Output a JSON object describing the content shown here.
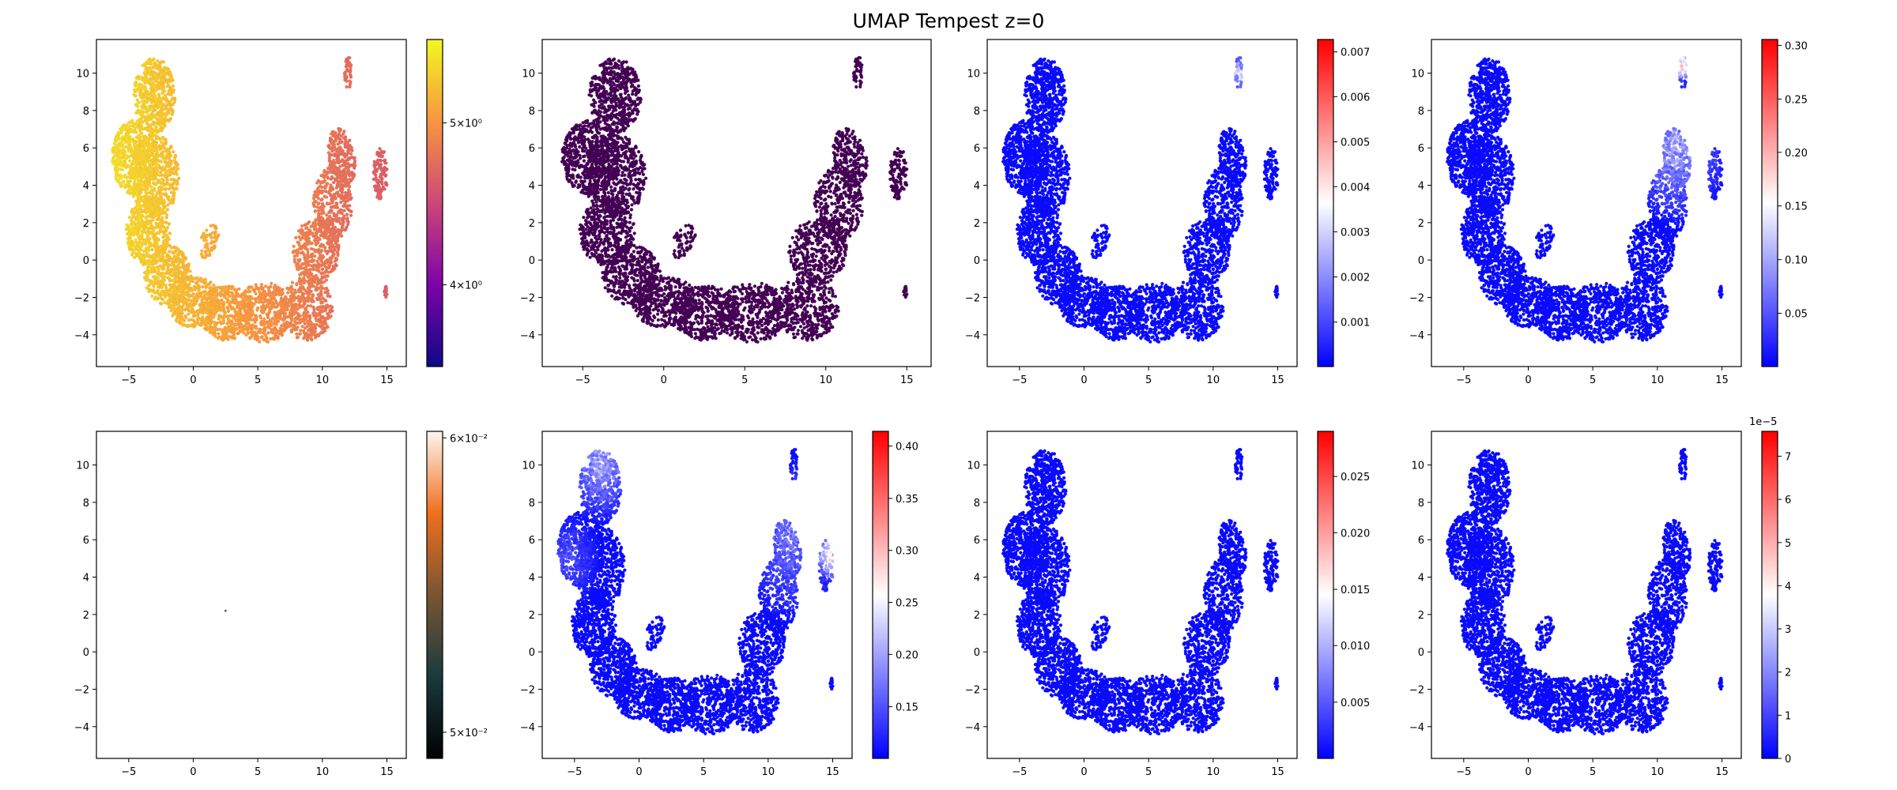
{
  "figure": {
    "title": "UMAP Tempest z=0"
  },
  "chart_data": [
    {
      "type": "scatter",
      "panel": "row1-col1",
      "x_ticks": [
        "−5",
        "0",
        "5",
        "10",
        "15"
      ],
      "y_ticks": [
        "−4",
        "−2",
        "0",
        "2",
        "4",
        "6",
        "8",
        "10"
      ],
      "xlim": [
        -7.5,
        16.5
      ],
      "ylim": [
        -5.7,
        11.8
      ],
      "colormap": "plasma",
      "color_scale": "log",
      "coloring": "gradient-x",
      "c_from": 0.95,
      "c_to": 0.55,
      "colorbar_ticks": [
        {
          "label": "5×10⁰",
          "frac": 0.745
        },
        {
          "label": "4×10⁰",
          "frac": 0.25
        }
      ],
      "colorbar_offset": ""
    },
    {
      "type": "scatter",
      "panel": "row1-col2",
      "x_ticks": [
        "−5",
        "0",
        "5",
        "10",
        "15"
      ],
      "y_ticks": [
        "−4",
        "−2",
        "0",
        "2",
        "4",
        "6",
        "8",
        "10"
      ],
      "xlim": [
        -7.5,
        16.5
      ],
      "ylim": [
        -5.7,
        11.8
      ],
      "colormap": "none",
      "single_color": "#440154",
      "coloring": "solid"
    },
    {
      "type": "scatter",
      "panel": "row1-col3",
      "x_ticks": [
        "−5",
        "0",
        "5",
        "10",
        "15"
      ],
      "y_ticks": [
        "−4",
        "−2",
        "0",
        "2",
        "4",
        "6",
        "8",
        "10"
      ],
      "xlim": [
        -7.5,
        16.5
      ],
      "ylim": [
        -5.7,
        11.8
      ],
      "colormap": "bwr",
      "coloring": "mostly-low",
      "hot": [
        {
          "x": 12.0,
          "y": 10.0,
          "r": 1.4,
          "strength": 0.45
        }
      ],
      "colorbar_ticks": [
        {
          "label": "0.001",
          "frac": 0.136
        },
        {
          "label": "0.002",
          "frac": 0.274
        },
        {
          "label": "0.003",
          "frac": 0.412
        },
        {
          "label": "0.004",
          "frac": 0.55
        },
        {
          "label": "0.005",
          "frac": 0.687
        },
        {
          "label": "0.006",
          "frac": 0.825
        },
        {
          "label": "0.007",
          "frac": 0.962
        }
      ],
      "colorbar_offset": ""
    },
    {
      "type": "scatter",
      "panel": "row1-col4",
      "x_ticks": [
        "−5",
        "0",
        "5",
        "10",
        "15"
      ],
      "y_ticks": [
        "−4",
        "−2",
        "0",
        "2",
        "4",
        "6",
        "8",
        "10"
      ],
      "xlim": [
        -7.5,
        16.5
      ],
      "ylim": [
        -5.7,
        11.8
      ],
      "colormap": "bwr",
      "coloring": "mostly-low",
      "hot": [
        {
          "x": 12.0,
          "y": 10.4,
          "r": 1.0,
          "strength": 0.7
        },
        {
          "x": 11.5,
          "y": 6.0,
          "r": 4.5,
          "strength": 0.35
        }
      ],
      "colorbar_ticks": [
        {
          "label": "0.05",
          "frac": 0.163
        },
        {
          "label": "0.10",
          "frac": 0.327
        },
        {
          "label": "0.15",
          "frac": 0.491
        },
        {
          "label": "0.20",
          "frac": 0.655
        },
        {
          "label": "0.25",
          "frac": 0.818
        },
        {
          "label": "0.30",
          "frac": 0.982
        }
      ],
      "colorbar_offset": ""
    },
    {
      "type": "scatter",
      "panel": "row2-col1",
      "x_ticks": [
        "−5",
        "0",
        "5",
        "10",
        "15"
      ],
      "y_ticks": [
        "−4",
        "−2",
        "0",
        "2",
        "4",
        "6",
        "8",
        "10"
      ],
      "xlim": [
        -7.5,
        16.5
      ],
      "ylim": [
        -5.7,
        11.8
      ],
      "colormap": "copper-log",
      "color_scale": "log",
      "coloring": "single-point",
      "points": [
        {
          "x": 2.5,
          "y": 2.2
        }
      ],
      "colorbar_ticks": [
        {
          "label": "6×10⁻²",
          "frac": 0.98
        },
        {
          "label": "5×10⁻²",
          "frac": 0.08
        }
      ],
      "colorbar_offset": ""
    },
    {
      "type": "scatter",
      "panel": "row2-col2",
      "x_ticks": [
        "−5",
        "0",
        "5",
        "10",
        "15"
      ],
      "y_ticks": [
        "−4",
        "−2",
        "0",
        "2",
        "4",
        "6",
        "8",
        "10"
      ],
      "xlim": [
        -7.5,
        16.5
      ],
      "ylim": [
        -5.7,
        11.8
      ],
      "colormap": "bwr",
      "coloring": "mostly-low",
      "hot": [
        {
          "x": -3.0,
          "y": 10.0,
          "r": 3.5,
          "strength": 0.35
        },
        {
          "x": 15.0,
          "y": 5.2,
          "r": 1.6,
          "strength": 0.8
        },
        {
          "x": 12.0,
          "y": 6.0,
          "r": 5.0,
          "strength": 0.25
        },
        {
          "x": -5.5,
          "y": 5.0,
          "r": 3.0,
          "strength": 0.18
        }
      ],
      "colorbar_ticks": [
        {
          "label": "0.15",
          "frac": 0.158
        },
        {
          "label": "0.20",
          "frac": 0.318
        },
        {
          "label": "0.25",
          "frac": 0.477
        },
        {
          "label": "0.30",
          "frac": 0.636
        },
        {
          "label": "0.35",
          "frac": 0.795
        },
        {
          "label": "0.40",
          "frac": 0.955
        }
      ],
      "colorbar_offset": ""
    },
    {
      "type": "scatter",
      "panel": "row2-col3",
      "x_ticks": [
        "−5",
        "0",
        "5",
        "10",
        "15"
      ],
      "y_ticks": [
        "−4",
        "−2",
        "0",
        "2",
        "4",
        "6",
        "8",
        "10"
      ],
      "xlim": [
        -7.5,
        16.5
      ],
      "ylim": [
        -5.7,
        11.8
      ],
      "colormap": "bwr",
      "coloring": "mostly-low",
      "hot": [],
      "colorbar_ticks": [
        {
          "label": "0.005",
          "frac": 0.172
        },
        {
          "label": "0.010",
          "frac": 0.345
        },
        {
          "label": "0.015",
          "frac": 0.517
        },
        {
          "label": "0.020",
          "frac": 0.69
        },
        {
          "label": "0.025",
          "frac": 0.862
        }
      ],
      "colorbar_offset": ""
    },
    {
      "type": "scatter",
      "panel": "row2-col4",
      "x_ticks": [
        "−5",
        "0",
        "5",
        "10",
        "15"
      ],
      "y_ticks": [
        "−4",
        "−2",
        "0",
        "2",
        "4",
        "6",
        "8",
        "10"
      ],
      "xlim": [
        -7.5,
        16.5
      ],
      "ylim": [
        -5.7,
        11.8
      ],
      "colormap": "bwr",
      "coloring": "mostly-low",
      "hot": [],
      "colorbar_ticks": [
        {
          "label": "0",
          "frac": 0.0
        },
        {
          "label": "1",
          "frac": 0.132
        },
        {
          "label": "2",
          "frac": 0.264
        },
        {
          "label": "3",
          "frac": 0.396
        },
        {
          "label": "4",
          "frac": 0.528
        },
        {
          "label": "5",
          "frac": 0.66
        },
        {
          "label": "6",
          "frac": 0.792
        },
        {
          "label": "7",
          "frac": 0.924
        }
      ],
      "colorbar_offset": "1e−5"
    }
  ]
}
